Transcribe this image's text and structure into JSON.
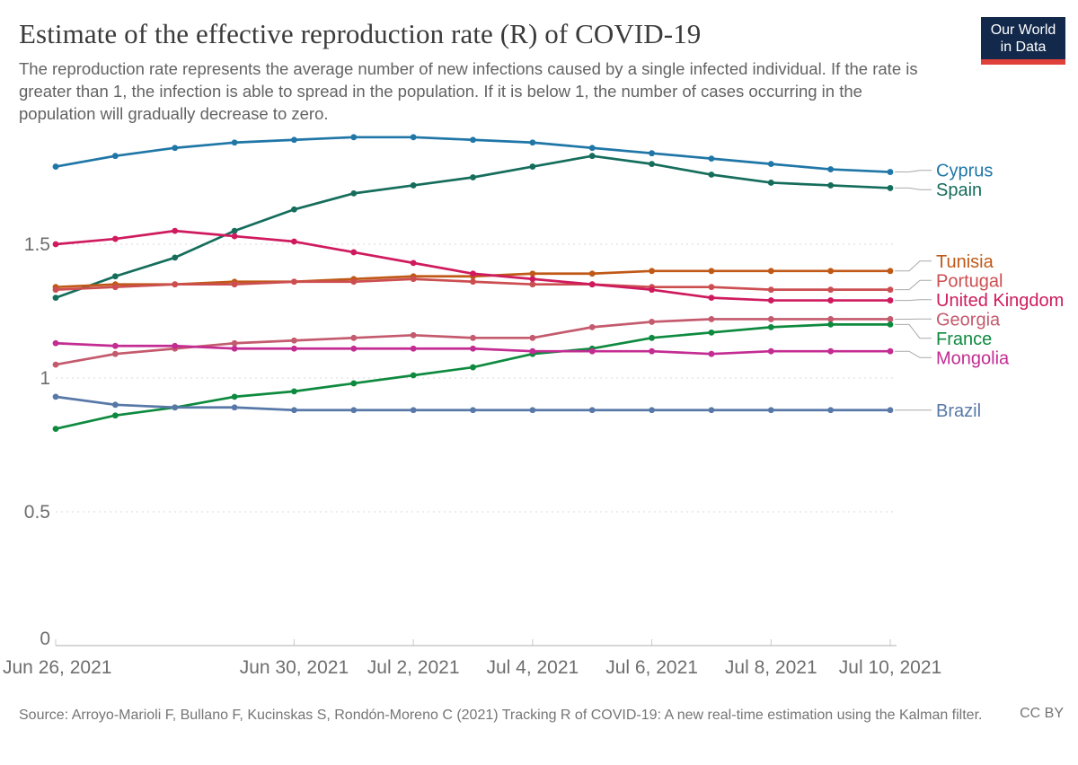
{
  "header": {
    "title": "Estimate of the effective reproduction rate (R) of COVID-19",
    "subtitle": "The reproduction rate represents the average number of new infections caused by a single infected individual. If the rate is greater than 1, the infection is able to spread in the population. If it is below 1, the number of cases occurring in the population will gradually decrease to zero.",
    "logo": {
      "line1": "Our World",
      "line2": "in Data",
      "bg_color": "#12294B",
      "bar_color": "#E0403A"
    }
  },
  "chart_data": {
    "type": "line",
    "title": "Estimate of the effective reproduction rate (R) of COVID-19",
    "xlabel": "",
    "ylabel": "",
    "year": "2021",
    "x_dates": [
      "Jun 26",
      "Jun 27",
      "Jun 28",
      "Jun 29",
      "Jun 30",
      "Jul 1",
      "Jul 2",
      "Jul 3",
      "Jul 4",
      "Jul 5",
      "Jul 6",
      "Jul 7",
      "Jul 8",
      "Jul 9",
      "Jul 10"
    ],
    "xticks": [
      {
        "label": "Jun 26, 2021",
        "index": 0
      },
      {
        "label": "Jun 30, 2021",
        "index": 4
      },
      {
        "label": "Jul 2, 2021",
        "index": 6
      },
      {
        "label": "Jul 4, 2021",
        "index": 8
      },
      {
        "label": "Jul 6, 2021",
        "index": 10
      },
      {
        "label": "Jul 8, 2021",
        "index": 12
      },
      {
        "label": "Jul 10, 2021",
        "index": 14
      }
    ],
    "yticks": [
      0,
      0.5,
      1,
      1.5
    ],
    "ylim": [
      0,
      1.93
    ],
    "grid": true,
    "legend_position": "right",
    "series": [
      {
        "name": "Cyprus",
        "color": "#1F76A7",
        "values": [
          1.79,
          1.83,
          1.86,
          1.88,
          1.89,
          1.9,
          1.9,
          1.89,
          1.88,
          1.86,
          1.84,
          1.82,
          1.8,
          1.78,
          1.77
        ]
      },
      {
        "name": "Spain",
        "color": "#156D5C",
        "values": [
          1.3,
          1.38,
          1.45,
          1.55,
          1.63,
          1.69,
          1.72,
          1.75,
          1.79,
          1.83,
          1.8,
          1.76,
          1.73,
          1.72,
          1.71
        ]
      },
      {
        "name": "Tunisia",
        "color": "#C05917",
        "values": [
          1.34,
          1.35,
          1.35,
          1.36,
          1.36,
          1.37,
          1.38,
          1.38,
          1.39,
          1.39,
          1.4,
          1.4,
          1.4,
          1.4,
          1.4
        ]
      },
      {
        "name": "Portugal",
        "color": "#CC4E51",
        "values": [
          1.33,
          1.34,
          1.35,
          1.35,
          1.36,
          1.36,
          1.37,
          1.36,
          1.35,
          1.35,
          1.34,
          1.34,
          1.33,
          1.33,
          1.33
        ]
      },
      {
        "name": "United Kingdom",
        "color": "#CF1B5E",
        "values": [
          1.5,
          1.52,
          1.55,
          1.53,
          1.51,
          1.47,
          1.43,
          1.39,
          1.37,
          1.35,
          1.33,
          1.3,
          1.29,
          1.29,
          1.29
        ]
      },
      {
        "name": "Georgia",
        "color": "#C45A6D",
        "values": [
          1.05,
          1.09,
          1.11,
          1.13,
          1.14,
          1.15,
          1.16,
          1.15,
          1.15,
          1.19,
          1.21,
          1.22,
          1.22,
          1.22,
          1.22
        ]
      },
      {
        "name": "France",
        "color": "#0E8A3F",
        "values": [
          0.81,
          0.86,
          0.89,
          0.93,
          0.95,
          0.98,
          1.01,
          1.04,
          1.09,
          1.11,
          1.15,
          1.17,
          1.19,
          1.2,
          1.2
        ]
      },
      {
        "name": "Mongolia",
        "color": "#C32C92",
        "values": [
          1.13,
          1.12,
          1.12,
          1.11,
          1.11,
          1.11,
          1.11,
          1.11,
          1.1,
          1.1,
          1.1,
          1.09,
          1.1,
          1.1,
          1.1
        ]
      },
      {
        "name": "Brazil",
        "color": "#5878A8",
        "values": [
          0.93,
          0.9,
          0.89,
          0.89,
          0.88,
          0.88,
          0.88,
          0.88,
          0.88,
          0.88,
          0.88,
          0.88,
          0.88,
          0.88,
          0.88
        ]
      }
    ]
  },
  "footer": {
    "source": "Source: Arroyo-Marioli F, Bullano F, Kucinskas S, Rondón-Moreno C (2021) Tracking R of COVID-19: A new real-time estimation using the Kalman filter.",
    "license": "CC BY"
  }
}
